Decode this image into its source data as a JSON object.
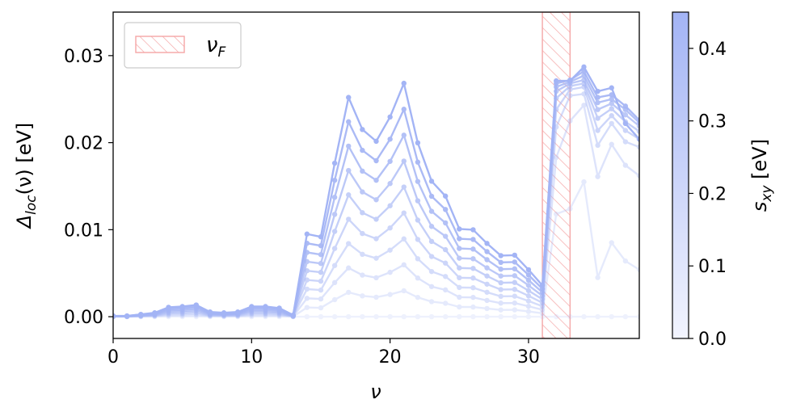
{
  "chart_data": {
    "type": "line",
    "title": "",
    "xlabel": "ν",
    "ylabel": "Δloc(ν) [eV]",
    "ylabel_parts": {
      "symbol": "Δ",
      "sub": "loc",
      "rest": "(ν) [eV]"
    },
    "xlim": [
      0,
      38
    ],
    "ylim": [
      -0.0025,
      0.035
    ],
    "xticks": [
      0,
      10,
      20,
      30
    ],
    "xtick_labels": [
      "0",
      "10",
      "20",
      "30"
    ],
    "yticks": [
      0.0,
      0.01,
      0.02,
      0.03
    ],
    "ytick_labels": [
      "0.00",
      "0.01",
      "0.02",
      "0.03"
    ],
    "grid": false,
    "marker": "circle",
    "line_color": "#a3b4f5",
    "x": [
      0,
      1,
      2,
      3,
      4,
      5,
      6,
      7,
      8,
      9,
      10,
      11,
      12,
      13,
      14,
      15,
      16,
      17,
      18,
      19,
      20,
      21,
      22,
      23,
      24,
      25,
      26,
      27,
      28,
      29,
      30,
      31,
      32,
      33,
      34,
      35,
      36,
      37,
      38
    ],
    "series": [
      {
        "s_xy": 0.0,
        "values": [
          0,
          0,
          0,
          0,
          0,
          0,
          0,
          0,
          0,
          0,
          0,
          0,
          0,
          0,
          0,
          0,
          0,
          0,
          0,
          0,
          0,
          0,
          0,
          0,
          0,
          0,
          0,
          0,
          0,
          0,
          0,
          0,
          0,
          0,
          0,
          0,
          0,
          0,
          0
        ]
      },
      {
        "s_xy": 0.05,
        "values": [
          1e-05,
          1e-05,
          3e-05,
          5e-05,
          0.00012,
          0.00013,
          0.00015,
          6e-05,
          5e-05,
          6e-05,
          0.00013,
          0.00013,
          0.00011,
          2e-05,
          0.00106,
          0.00102,
          0.00196,
          0.0028,
          0.00239,
          0.00224,
          0.00255,
          0.00298,
          0.00222,
          0.00173,
          0.00154,
          0.00112,
          0.00111,
          0.00094,
          0.00078,
          0.00079,
          0.0006,
          0.0004,
          0.0118,
          0.0124,
          0.0155,
          0.0045,
          0.0085,
          0.0064,
          0.0054
        ]
      },
      {
        "s_xy": 0.1,
        "values": [
          2e-05,
          2e-05,
          6e-05,
          0.0001,
          0.00024,
          0.00026,
          0.0003,
          0.00012,
          0.0001,
          0.00012,
          0.00026,
          0.00026,
          0.00022,
          4e-05,
          0.00211,
          0.00204,
          0.00392,
          0.0056,
          0.00478,
          0.00448,
          0.0051,
          0.00596,
          0.00444,
          0.00346,
          0.00308,
          0.00224,
          0.00222,
          0.00187,
          0.00156,
          0.00157,
          0.0012,
          0.0008,
          0.0183,
          0.0225,
          0.0243,
          0.0161,
          0.0198,
          0.0174,
          0.0162
        ]
      },
      {
        "s_xy": 0.15,
        "values": [
          3e-05,
          3e-05,
          9e-05,
          0.00015,
          0.00036,
          0.00039,
          0.00045,
          0.00018,
          0.00015,
          0.00018,
          0.00039,
          0.00039,
          0.00033,
          6e-05,
          0.00317,
          0.00306,
          0.00588,
          0.0084,
          0.00717,
          0.00672,
          0.00765,
          0.00894,
          0.00666,
          0.00519,
          0.00462,
          0.00336,
          0.00333,
          0.00281,
          0.00234,
          0.00236,
          0.0018,
          0.0012,
          0.0218,
          0.0254,
          0.0256,
          0.0197,
          0.0222,
          0.0201,
          0.0195
        ]
      },
      {
        "s_xy": 0.2,
        "values": [
          4e-05,
          4e-05,
          0.00012,
          0.0002,
          0.00048,
          0.00052,
          0.0006,
          0.00024,
          0.0002,
          0.00024,
          0.00052,
          0.00052,
          0.00044,
          8e-05,
          0.00422,
          0.00408,
          0.00784,
          0.0112,
          0.00956,
          0.00896,
          0.0102,
          0.01192,
          0.00888,
          0.00692,
          0.00616,
          0.00448,
          0.00444,
          0.00374,
          0.00312,
          0.00314,
          0.0024,
          0.0016,
          0.0238,
          0.0261,
          0.0264,
          0.0214,
          0.0231,
          0.0214,
          0.0204
        ]
      },
      {
        "s_xy": 0.25,
        "values": [
          5e-05,
          5e-05,
          0.00015,
          0.00025,
          0.0006,
          0.00065,
          0.00075,
          0.0003,
          0.00025,
          0.0003,
          0.00065,
          0.00065,
          0.00055,
          0.0001,
          0.00528,
          0.0051,
          0.0098,
          0.014,
          0.01195,
          0.0112,
          0.01275,
          0.0149,
          0.0111,
          0.00865,
          0.0077,
          0.0056,
          0.00555,
          0.00468,
          0.0039,
          0.00393,
          0.003,
          0.002,
          0.0251,
          0.0265,
          0.0268,
          0.0228,
          0.0239,
          0.0224,
          0.0213
        ]
      },
      {
        "s_xy": 0.3,
        "values": [
          6e-05,
          6e-05,
          0.00018,
          0.0003,
          0.00072,
          0.00078,
          0.0009,
          0.00036,
          0.0003,
          0.00036,
          0.00078,
          0.00078,
          0.00066,
          0.00012,
          0.00633,
          0.00612,
          0.01176,
          0.0168,
          0.01434,
          0.01344,
          0.0153,
          0.01788,
          0.01332,
          0.01038,
          0.00924,
          0.00672,
          0.00666,
          0.00561,
          0.00468,
          0.00471,
          0.0036,
          0.0024,
          0.0259,
          0.0268,
          0.0272,
          0.0238,
          0.0245,
          0.0232,
          0.0219
        ]
      },
      {
        "s_xy": 0.35,
        "values": [
          7e-05,
          7e-05,
          0.00021,
          0.00035,
          0.00084,
          0.00091,
          0.00105,
          0.00042,
          0.00035,
          0.00042,
          0.00091,
          0.00091,
          0.00077,
          0.00014,
          0.00739,
          0.00714,
          0.01372,
          0.0196,
          0.01673,
          0.01568,
          0.01785,
          0.02086,
          0.01554,
          0.01211,
          0.01078,
          0.00784,
          0.00777,
          0.00655,
          0.00546,
          0.0055,
          0.0042,
          0.0028,
          0.0264,
          0.027,
          0.0277,
          0.0246,
          0.025,
          0.0238,
          0.0223
        ]
      },
      {
        "s_xy": 0.4,
        "values": [
          8e-05,
          8e-05,
          0.00024,
          0.0004,
          0.00096,
          0.00104,
          0.0012,
          0.00048,
          0.0004,
          0.00048,
          0.00104,
          0.00104,
          0.00088,
          0.00016,
          0.00844,
          0.00816,
          0.01568,
          0.0224,
          0.01912,
          0.01792,
          0.0204,
          0.02384,
          0.01776,
          0.01384,
          0.01232,
          0.00896,
          0.00888,
          0.00748,
          0.00624,
          0.00628,
          0.0048,
          0.0032,
          0.0268,
          0.0272,
          0.0282,
          0.0252,
          0.0255,
          0.0242,
          0.0226
        ]
      },
      {
        "s_xy": 0.45,
        "values": [
          9e-05,
          9e-05,
          0.00027,
          0.00045,
          0.00108,
          0.00117,
          0.00135,
          0.00054,
          0.00045,
          0.00054,
          0.00117,
          0.00117,
          0.00099,
          0.00018,
          0.0095,
          0.00918,
          0.01764,
          0.0252,
          0.02151,
          0.02016,
          0.02295,
          0.02682,
          0.01998,
          0.01557,
          0.01386,
          0.01008,
          0.00999,
          0.00842,
          0.00702,
          0.00707,
          0.0054,
          0.0036,
          0.0271,
          0.0271,
          0.0287,
          0.0259,
          0.0263,
          0.0222,
          0.0204
        ]
      }
    ],
    "fermi_band": {
      "x0": 31,
      "x1": 33,
      "color": "#f4a6a6"
    },
    "legend": {
      "placement": "top-left",
      "label": "ν_F",
      "label_symbol": "ν",
      "label_sub": "F"
    },
    "colorbar": {
      "label": "s_xy [eV]",
      "label_symbol": "s",
      "label_sub": "xy",
      "label_rest": " [eV]",
      "range": [
        0,
        0.45
      ],
      "ticks": [
        0.0,
        0.1,
        0.2,
        0.3,
        0.4
      ],
      "tick_labels": [
        "0.0",
        "0.1",
        "0.2",
        "0.3",
        "0.4"
      ],
      "color_low": "#f2f4fe",
      "color_high": "#a3b4f5"
    }
  }
}
